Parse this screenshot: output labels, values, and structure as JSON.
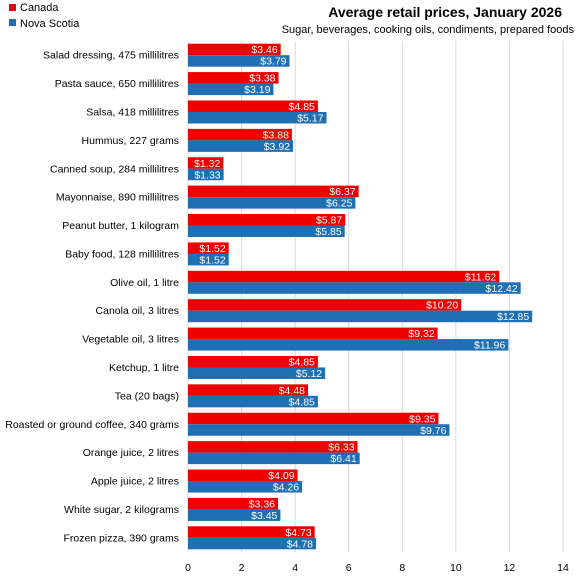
{
  "chart_data": {
    "type": "bar",
    "orientation": "horizontal",
    "title": "Average retail prices, January 2026",
    "subtitle": "Sugar, beverages,  cooking oils, condiments, prepared foods",
    "xlabel": "",
    "ylabel": "",
    "xlim": [
      0,
      14
    ],
    "xticks": [
      0,
      2,
      4,
      6,
      8,
      10,
      12,
      14
    ],
    "grid": true,
    "legend_position": "top-left",
    "categories": [
      "Salad dressing, 475 millilitres",
      "Pasta sauce, 650 millilitres",
      "Salsa, 418 millilitres",
      "Hummus, 227 grams",
      "Canned soup, 284 millilitres",
      "Mayonnaise, 890 millilitres",
      "Peanut butter, 1 kilogram",
      "Baby food, 128 millilitres",
      "Olive oil, 1 litre",
      "Canola oil, 3 litres",
      "Vegetable oil, 3 litres",
      "Ketchup, 1 litre",
      "Tea (20 bags)",
      "Roasted or ground coffee, 340 grams",
      "Orange juice, 2 litres",
      "Apple juice, 2 litres",
      "White sugar, 2 kilograms",
      "Frozen pizza, 390 grams"
    ],
    "series": [
      {
        "name": "Canada",
        "color": "#ee0000",
        "values": [
          3.46,
          3.38,
          4.85,
          3.88,
          1.32,
          6.37,
          5.87,
          1.52,
          11.62,
          10.2,
          9.32,
          4.85,
          4.48,
          9.35,
          6.33,
          4.09,
          3.36,
          4.73
        ],
        "labels": [
          "$3.46",
          "$3.38",
          "$4.85",
          "$3.88",
          "$1.32",
          "$6.37",
          "$5.87",
          "$1.52",
          "$11.62",
          "$10.20",
          "$9.32",
          "$4.85",
          "$4.48",
          "$9.35",
          "$6.33",
          "$4.09",
          "$3.36",
          "$4.73"
        ]
      },
      {
        "name": "Nova Scotia",
        "color": "#1f6fb4",
        "values": [
          3.79,
          3.19,
          5.17,
          3.92,
          1.33,
          6.25,
          5.85,
          1.52,
          12.42,
          12.85,
          11.96,
          5.12,
          4.85,
          9.76,
          6.41,
          4.26,
          3.45,
          4.78
        ],
        "labels": [
          "$3.79",
          "$3.19",
          "$5.17",
          "$3.92",
          "$1.33",
          "$6.25",
          "$5.85",
          "$1.52",
          "$12.42",
          "$12.85",
          "$11.96",
          "$5.12",
          "$4.85",
          "$9.76",
          "$6.41",
          "$4.26",
          "$3.45",
          "$4.78"
        ]
      }
    ]
  }
}
